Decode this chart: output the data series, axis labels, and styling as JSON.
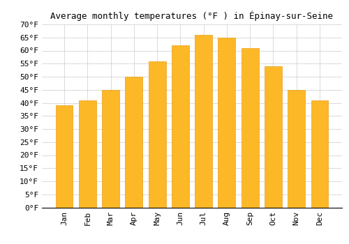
{
  "title": "Average monthly temperatures (°F ) in Épinay-sur-Seine",
  "months": [
    "Jan",
    "Feb",
    "Mar",
    "Apr",
    "May",
    "Jun",
    "Jul",
    "Aug",
    "Sep",
    "Oct",
    "Nov",
    "Dec"
  ],
  "values": [
    39,
    41,
    45,
    50,
    56,
    62,
    66,
    65,
    61,
    54,
    45,
    41
  ],
  "bar_color": "#FDB827",
  "bar_edge_color": "#E8A020",
  "ylim": [
    0,
    70
  ],
  "yticks": [
    0,
    5,
    10,
    15,
    20,
    25,
    30,
    35,
    40,
    45,
    50,
    55,
    60,
    65,
    70
  ],
  "background_color": "#ffffff",
  "grid_color": "#cccccc",
  "title_fontsize": 9,
  "tick_fontsize": 8,
  "font_family": "monospace"
}
